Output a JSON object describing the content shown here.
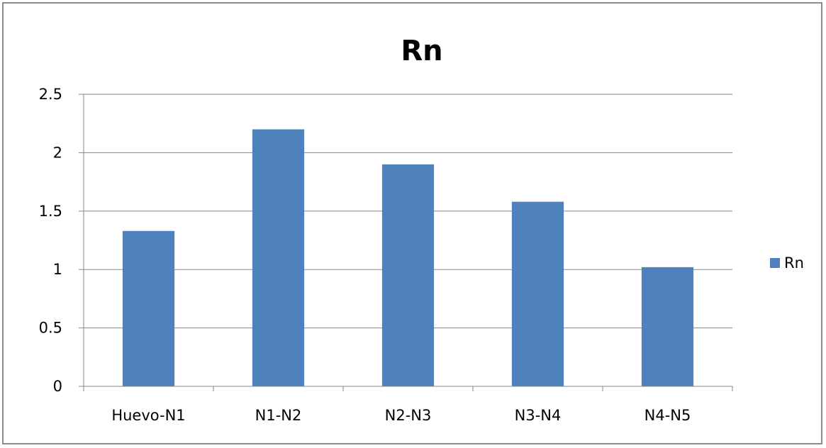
{
  "chart_data": {
    "type": "bar",
    "title": "Rn",
    "xlabel": "",
    "ylabel": "",
    "categories": [
      "Huevo-N1",
      "N1-N2",
      "N2-N3",
      "N3-N4",
      "N4-N5"
    ],
    "series": [
      {
        "name": "Rn",
        "values": [
          1.33,
          2.2,
          1.9,
          1.58,
          1.02
        ],
        "color": "#4f81bd"
      }
    ],
    "ylim": [
      0,
      2.5
    ],
    "yticks": [
      "0",
      "0.5",
      "1",
      "1.5",
      "2",
      "2.5"
    ],
    "grid": true,
    "legend_position": "right"
  }
}
